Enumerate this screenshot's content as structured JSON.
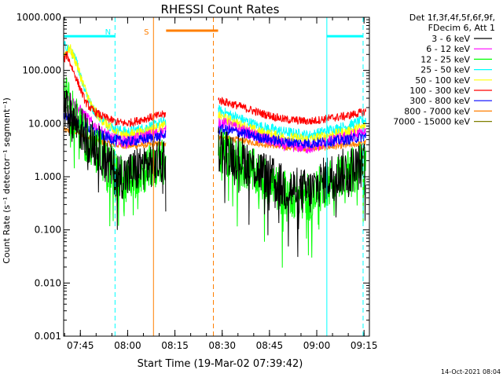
{
  "chart_data": {
    "type": "line",
    "title": "RHESSI Count Rates",
    "xlabel": "Start Time (19-Mar-02 07:39:42)",
    "ylabel": "Count Rate (s⁻¹ detector⁻¹ segment⁻¹)",
    "x_units": "minutes after 07:39:42",
    "xlim": [
      0,
      97
    ],
    "ylim": [
      0.001,
      1000
    ],
    "y_scale": "log",
    "x_ticks": [
      {
        "x": 5.3,
        "label": "07:45"
      },
      {
        "x": 20.3,
        "label": "08:00"
      },
      {
        "x": 35.3,
        "label": "08:15"
      },
      {
        "x": 50.3,
        "label": "08:30"
      },
      {
        "x": 65.3,
        "label": "08:45"
      },
      {
        "x": 80.3,
        "label": "09:00"
      },
      {
        "x": 95.3,
        "label": "09:15"
      }
    ],
    "y_ticks": [
      {
        "y": 1000,
        "label": "1000.000"
      },
      {
        "y": 100,
        "label": "100.000"
      },
      {
        "y": 10,
        "label": "10.000"
      },
      {
        "y": 1,
        "label": "1.000"
      },
      {
        "y": 0.1,
        "label": "0.100"
      },
      {
        "y": 0.01,
        "label": "0.010"
      },
      {
        "y": 0.001,
        "label": "0.001"
      }
    ],
    "legend_header": [
      "Det 1f,3f,4f,5f,6f,9f,",
      "FDecim 6, Att 1"
    ],
    "legend_position": "right",
    "data_gap": [
      32.5,
      49
    ],
    "series": [
      {
        "name": "3 - 6 keV",
        "color": "#000000",
        "points": [
          [
            0,
            20
          ],
          [
            3,
            12
          ],
          [
            8,
            5
          ],
          [
            12,
            3
          ],
          [
            16,
            1.2
          ],
          [
            20,
            1.0
          ],
          [
            24,
            1.5
          ],
          [
            32,
            2
          ],
          [
            49,
            3.5
          ],
          [
            55,
            2.5
          ],
          [
            62,
            1.3
          ],
          [
            70,
            0.6
          ],
          [
            78,
            0.5
          ],
          [
            84,
            1.0
          ],
          [
            90,
            1.3
          ],
          [
            96,
            1.7
          ]
        ]
      },
      {
        "name": "6 - 12 keV",
        "color": "#ff00ff",
        "points": [
          [
            0,
            40
          ],
          [
            2,
            30
          ],
          [
            5,
            18
          ],
          [
            9,
            10
          ],
          [
            12,
            7
          ],
          [
            16,
            5
          ],
          [
            20,
            4.5
          ],
          [
            25,
            5.5
          ],
          [
            32,
            7
          ],
          [
            49,
            11
          ],
          [
            55,
            8
          ],
          [
            62,
            5.5
          ],
          [
            70,
            4
          ],
          [
            78,
            3.5
          ],
          [
            84,
            4.5
          ],
          [
            90,
            5.5
          ],
          [
            96,
            7
          ]
        ]
      },
      {
        "name": "12 - 25 keV",
        "color": "#00ff00",
        "points": [
          [
            0,
            40
          ],
          [
            3,
            15
          ],
          [
            7,
            5
          ],
          [
            11,
            3
          ],
          [
            15,
            1.5
          ],
          [
            20,
            0.8
          ],
          [
            24,
            1.2
          ],
          [
            32,
            2
          ],
          [
            49,
            3
          ],
          [
            55,
            2
          ],
          [
            62,
            1
          ],
          [
            70,
            0.5
          ],
          [
            78,
            0.4
          ],
          [
            84,
            0.8
          ],
          [
            90,
            1.2
          ],
          [
            96,
            1.8
          ]
        ]
      },
      {
        "name": "25 - 50 keV",
        "color": "#00ffff",
        "points": [
          [
            0,
            300
          ],
          [
            2,
            250
          ],
          [
            4,
            150
          ],
          [
            6,
            60
          ],
          [
            9,
            20
          ],
          [
            12,
            12
          ],
          [
            16,
            8
          ],
          [
            20,
            7
          ],
          [
            25,
            8
          ],
          [
            32,
            11
          ],
          [
            49,
            18
          ],
          [
            55,
            13
          ],
          [
            62,
            9
          ],
          [
            70,
            7
          ],
          [
            78,
            6
          ],
          [
            84,
            7.5
          ],
          [
            90,
            9
          ],
          [
            96,
            12
          ]
        ]
      },
      {
        "name": "50 - 100 keV",
        "color": "#ffff00",
        "points": [
          [
            0,
            200
          ],
          [
            2,
            260
          ],
          [
            4,
            140
          ],
          [
            6,
            60
          ],
          [
            9,
            20
          ],
          [
            12,
            12
          ],
          [
            16,
            7
          ],
          [
            20,
            6
          ],
          [
            25,
            7
          ],
          [
            32,
            9
          ],
          [
            49,
            14
          ],
          [
            55,
            10
          ],
          [
            62,
            7
          ],
          [
            70,
            5.5
          ],
          [
            78,
            5
          ],
          [
            84,
            6
          ],
          [
            90,
            7
          ],
          [
            96,
            9
          ]
        ]
      },
      {
        "name": "100 - 300 keV",
        "color": "#ff0000",
        "points": [
          [
            0,
            150
          ],
          [
            1,
            200
          ],
          [
            3,
            100
          ],
          [
            5,
            50
          ],
          [
            7,
            25
          ],
          [
            9,
            18
          ],
          [
            12,
            14
          ],
          [
            16,
            11
          ],
          [
            20,
            10
          ],
          [
            25,
            12
          ],
          [
            32,
            15
          ],
          [
            49,
            28
          ],
          [
            55,
            22
          ],
          [
            62,
            16
          ],
          [
            70,
            12
          ],
          [
            78,
            11
          ],
          [
            84,
            12.5
          ],
          [
            90,
            14
          ],
          [
            96,
            17
          ]
        ]
      },
      {
        "name": "300 - 800 keV",
        "color": "#0000ff",
        "points": [
          [
            0,
            15
          ],
          [
            3,
            12
          ],
          [
            8,
            8
          ],
          [
            12,
            6
          ],
          [
            16,
            5
          ],
          [
            20,
            4.5
          ],
          [
            25,
            5
          ],
          [
            32,
            6
          ],
          [
            49,
            8
          ],
          [
            55,
            7
          ],
          [
            62,
            5.5
          ],
          [
            70,
            4.5
          ],
          [
            78,
            4.2
          ],
          [
            84,
            4.6
          ],
          [
            90,
            5
          ],
          [
            96,
            5.8
          ]
        ]
      },
      {
        "name": "800 - 7000 keV",
        "color": "#ff7f00",
        "points": [
          [
            0,
            7.5
          ],
          [
            4,
            7
          ],
          [
            8,
            5.5
          ],
          [
            12,
            4.5
          ],
          [
            16,
            4
          ],
          [
            20,
            3.8
          ],
          [
            25,
            3.9
          ],
          [
            32,
            4.2
          ],
          [
            49,
            5.5
          ],
          [
            55,
            5
          ],
          [
            62,
            4.2
          ],
          [
            70,
            3.6
          ],
          [
            78,
            3.4
          ],
          [
            84,
            3.6
          ],
          [
            90,
            3.9
          ],
          [
            96,
            4.3
          ]
        ]
      },
      {
        "name": "7000 - 15000 keV",
        "color": "#7f7f00",
        "points": []
      }
    ],
    "annotations": [
      {
        "type": "bar",
        "label": "",
        "color": "#00ffff",
        "x": [
          0,
          16.3
        ],
        "y": 440
      },
      {
        "type": "bar",
        "label": "",
        "color": "#00ffff",
        "x": [
          83.5,
          95
        ],
        "y": 440
      },
      {
        "type": "bar",
        "label": "",
        "color": "#ff7f00",
        "x": [
          32.5,
          49
        ],
        "y": 560
      },
      {
        "type": "vline",
        "label": "N",
        "color": "#00ffff",
        "style": "dashed",
        "x": 16.3
      },
      {
        "type": "vline",
        "label": "",
        "color": "#00ffff",
        "style": "dashed",
        "x": 95
      },
      {
        "type": "vline",
        "label": "",
        "color": "#00ffff",
        "style": "solid",
        "x": 83.5
      },
      {
        "type": "vline",
        "label": "S",
        "color": "#ff7f00",
        "style": "solid",
        "x": 28.5
      },
      {
        "type": "vline",
        "label": "",
        "color": "#ff7f00",
        "style": "dashed",
        "x": 47.5
      }
    ]
  },
  "timestamp": "14-Oct-2021 08:04"
}
